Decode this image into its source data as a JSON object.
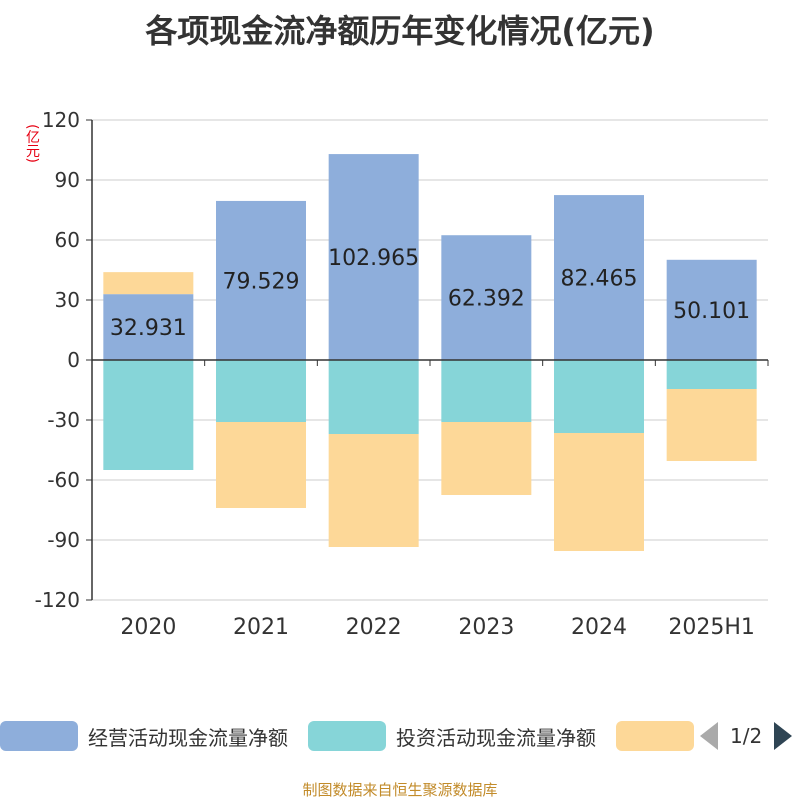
{
  "title": "各项现金流净额历年变化情况(亿元)",
  "unit": "(亿元)",
  "source": "制图数据来自恒生聚源数据库",
  "legend": {
    "items": [
      {
        "label": "经营活动现金流量净额",
        "color": "#8eaedb"
      },
      {
        "label": "投资活动现金流量净额",
        "color": "#86d5d8"
      },
      {
        "label": "",
        "color": "#fdd898"
      }
    ],
    "page": "1/2"
  },
  "chart_data": {
    "type": "bar",
    "stacked": true,
    "categories": [
      "2020",
      "2021",
      "2022",
      "2023",
      "2024",
      "2025H1"
    ],
    "ylim": [
      -120,
      120
    ],
    "yticks": [
      120,
      90,
      60,
      30,
      0,
      -30,
      -60,
      -90,
      -120
    ],
    "ylabel": "(亿元)",
    "grid": true,
    "series": [
      {
        "name": "经营活动现金流量净额",
        "color": "#8eaedb",
        "values": [
          32.931,
          79.529,
          102.965,
          62.392,
          82.465,
          50.101
        ],
        "labels": [
          "32.931",
          "79.529",
          "102.965",
          "62.392",
          "82.465",
          "50.101"
        ]
      },
      {
        "name": "投资活动现金流量净额",
        "color": "#86d5d8",
        "values": [
          -55,
          -31,
          -37,
          -31,
          -36.5,
          -14.5
        ]
      },
      {
        "color": "#fdd898",
        "values": [
          11,
          -43,
          -56.5,
          -36.5,
          -59,
          -36
        ]
      }
    ]
  }
}
